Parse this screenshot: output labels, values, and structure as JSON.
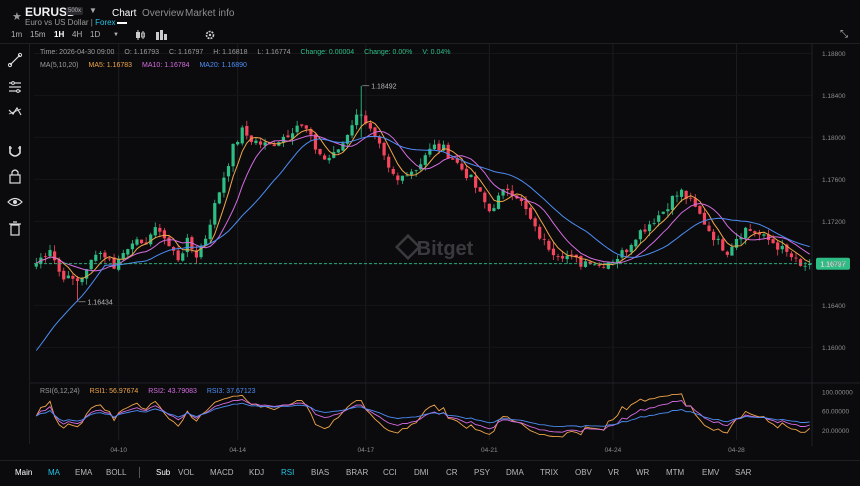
{
  "header": {
    "symbol": "EURUSD",
    "leverage": "500x",
    "subtitle": "Euro vs US Dollar",
    "separator": " | ",
    "category": "Forex",
    "tabs": [
      {
        "label": "Chart",
        "active": true
      },
      {
        "label": "Overview",
        "active": false
      },
      {
        "label": "Market info",
        "active": false
      }
    ]
  },
  "toolbar": {
    "timeframes": [
      {
        "label": "1m",
        "active": false
      },
      {
        "label": "15m",
        "active": false
      },
      {
        "label": "1H",
        "active": true
      },
      {
        "label": "4H",
        "active": false
      },
      {
        "label": "1D",
        "active": false
      }
    ],
    "dropdown_icon": "chevron-down-icon",
    "icons": [
      "candle-type-icon",
      "indicator-icon",
      "settings-icon"
    ]
  },
  "sidebar_icons": [
    "trend-line-icon",
    "fib-icon",
    "pattern-icon",
    "magnet-icon",
    "lock-icon",
    "eye-icon",
    "trash-icon"
  ],
  "info": {
    "time": "Time: 2026-04-30 09:00",
    "open": "O: 1.16793",
    "close": "C: 1.16797",
    "high": "H: 1.16818",
    "low": "L: 1.16774",
    "change": "Change: 0.00004",
    "change_pct": "Change: 0.00%",
    "volume": "V: 0.04%"
  },
  "ma_legend": {
    "label": "MA(5,10,20)",
    "ma5": "MA5: 1.16783",
    "ma10": "MA10: 1.16784",
    "ma20": "MA20: 1.16890"
  },
  "rsi_legend": {
    "label": "RSI(6,12,24)",
    "rsi1": "RSI1: 56.97674",
    "rsi2": "RSI2: 43.79083",
    "rsi3": "RSI3: 37.67123"
  },
  "watermark": "Bitget",
  "colors": {
    "up": "#2ebd85",
    "down": "#f6465d",
    "ma5": "#f0a54a",
    "ma10": "#d56ce0",
    "ma20": "#4d8ef5",
    "accent": "#23c3e6",
    "price_tag": "#2ebd85"
  },
  "chart_data": {
    "type": "candlestick",
    "price_axis": {
      "ticks": [
        "1.18800",
        "1.18400",
        "1.18000",
        "1.17600",
        "1.17200",
        "1.16800",
        "1.16400",
        "1.16000"
      ],
      "values": [
        1.188,
        1.184,
        1.18,
        1.176,
        1.172,
        1.168,
        1.164,
        1.16
      ],
      "ylim": [
        1.1567,
        1.1889
      ]
    },
    "current_price": {
      "label": "1.16797",
      "value": 1.16797
    },
    "annotations": [
      {
        "label": "1.18492",
        "value": 1.18492,
        "kind": "high"
      },
      {
        "label": "1.16434",
        "value": 1.16434,
        "kind": "low"
      }
    ],
    "x_ticks": [
      "04-10",
      "04-14",
      "04-17",
      "04-21",
      "04-24",
      "04-28"
    ],
    "x_tick_index": [
      18,
      44,
      72,
      99,
      126,
      153
    ],
    "close_path": [
      [
        0,
        1.168
      ],
      [
        3,
        1.1695
      ],
      [
        5,
        1.1672
      ],
      [
        7,
        1.1665
      ],
      [
        9,
        1.1664
      ],
      [
        11,
        1.1672
      ],
      [
        13,
        1.1692
      ],
      [
        15,
        1.1688
      ],
      [
        17,
        1.1678
      ],
      [
        19,
        1.169
      ],
      [
        21,
        1.1703
      ],
      [
        23,
        1.1695
      ],
      [
        25,
        1.1708
      ],
      [
        27,
        1.1713
      ],
      [
        29,
        1.1696
      ],
      [
        31,
        1.1685
      ],
      [
        33,
        1.17
      ],
      [
        35,
        1.1688
      ],
      [
        37,
        1.1705
      ],
      [
        39,
        1.1735
      ],
      [
        41,
        1.1763
      ],
      [
        43,
        1.179
      ],
      [
        45,
        1.1806
      ],
      [
        47,
        1.1798
      ],
      [
        49,
        1.1794
      ],
      [
        51,
        1.1792
      ],
      [
        53,
        1.1798
      ],
      [
        55,
        1.1804
      ],
      [
        57,
        1.1812
      ],
      [
        59,
        1.1807
      ],
      [
        61,
        1.179
      ],
      [
        63,
        1.1779
      ],
      [
        65,
        1.1783
      ],
      [
        67,
        1.1795
      ],
      [
        69,
        1.1814
      ],
      [
        71,
        1.1825
      ],
      [
        73,
        1.1806
      ],
      [
        75,
        1.179
      ],
      [
        77,
        1.1768
      ],
      [
        79,
        1.1758
      ],
      [
        81,
        1.1768
      ],
      [
        83,
        1.177
      ],
      [
        85,
        1.1784
      ],
      [
        87,
        1.1791
      ],
      [
        89,
        1.1789
      ],
      [
        91,
        1.178
      ],
      [
        93,
        1.177
      ],
      [
        95,
        1.176
      ],
      [
        97,
        1.1745
      ],
      [
        99,
        1.173
      ],
      [
        101,
        1.1742
      ],
      [
        103,
        1.1752
      ],
      [
        105,
        1.1745
      ],
      [
        107,
        1.173
      ],
      [
        109,
        1.1712
      ],
      [
        111,
        1.17
      ],
      [
        113,
        1.1692
      ],
      [
        115,
        1.1689
      ],
      [
        117,
        1.1685
      ],
      [
        119,
        1.168
      ],
      [
        121,
        1.1684
      ],
      [
        123,
        1.1678
      ],
      [
        125,
        1.1682
      ],
      [
        127,
        1.1686
      ],
      [
        129,
        1.1694
      ],
      [
        131,
        1.1707
      ],
      [
        133,
        1.1714
      ],
      [
        135,
        1.1722
      ],
      [
        137,
        1.173
      ],
      [
        139,
        1.1742
      ],
      [
        141,
        1.1748
      ],
      [
        143,
        1.1738
      ],
      [
        145,
        1.1726
      ],
      [
        147,
        1.1712
      ],
      [
        149,
        1.17
      ],
      [
        151,
        1.1692
      ],
      [
        153,
        1.1705
      ],
      [
        155,
        1.1713
      ],
      [
        157,
        1.171
      ],
      [
        159,
        1.1704
      ],
      [
        161,
        1.17
      ],
      [
        163,
        1.1693
      ],
      [
        165,
        1.1686
      ],
      [
        167,
        1.1676
      ],
      [
        169,
        1.168
      ]
    ],
    "rsi_axis": {
      "ticks": [
        "100.00000",
        "60.00000",
        "20.00000"
      ],
      "values": [
        100,
        60,
        20
      ],
      "ylim": [
        0,
        100
      ]
    }
  },
  "bottom_bar": {
    "main_label": "Main",
    "main_items": [
      {
        "label": "MA",
        "active": true
      },
      {
        "label": "EMA",
        "active": false
      },
      {
        "label": "BOLL",
        "active": false
      }
    ],
    "sub_label": "Sub",
    "sub_items": [
      {
        "label": "VOL",
        "active": false
      },
      {
        "label": "MACD",
        "active": false
      },
      {
        "label": "KDJ",
        "active": false
      },
      {
        "label": "RSI",
        "active": true
      },
      {
        "label": "BIAS",
        "active": false
      },
      {
        "label": "BRAR",
        "active": false
      },
      {
        "label": "CCI",
        "active": false
      },
      {
        "label": "DMI",
        "active": false
      },
      {
        "label": "CR",
        "active": false
      },
      {
        "label": "PSY",
        "active": false
      },
      {
        "label": "DMA",
        "active": false
      },
      {
        "label": "TRIX",
        "active": false
      },
      {
        "label": "OBV",
        "active": false
      },
      {
        "label": "VR",
        "active": false
      },
      {
        "label": "WR",
        "active": false
      },
      {
        "label": "MTM",
        "active": false
      },
      {
        "label": "EMV",
        "active": false
      },
      {
        "label": "SAR",
        "active": false
      }
    ]
  }
}
